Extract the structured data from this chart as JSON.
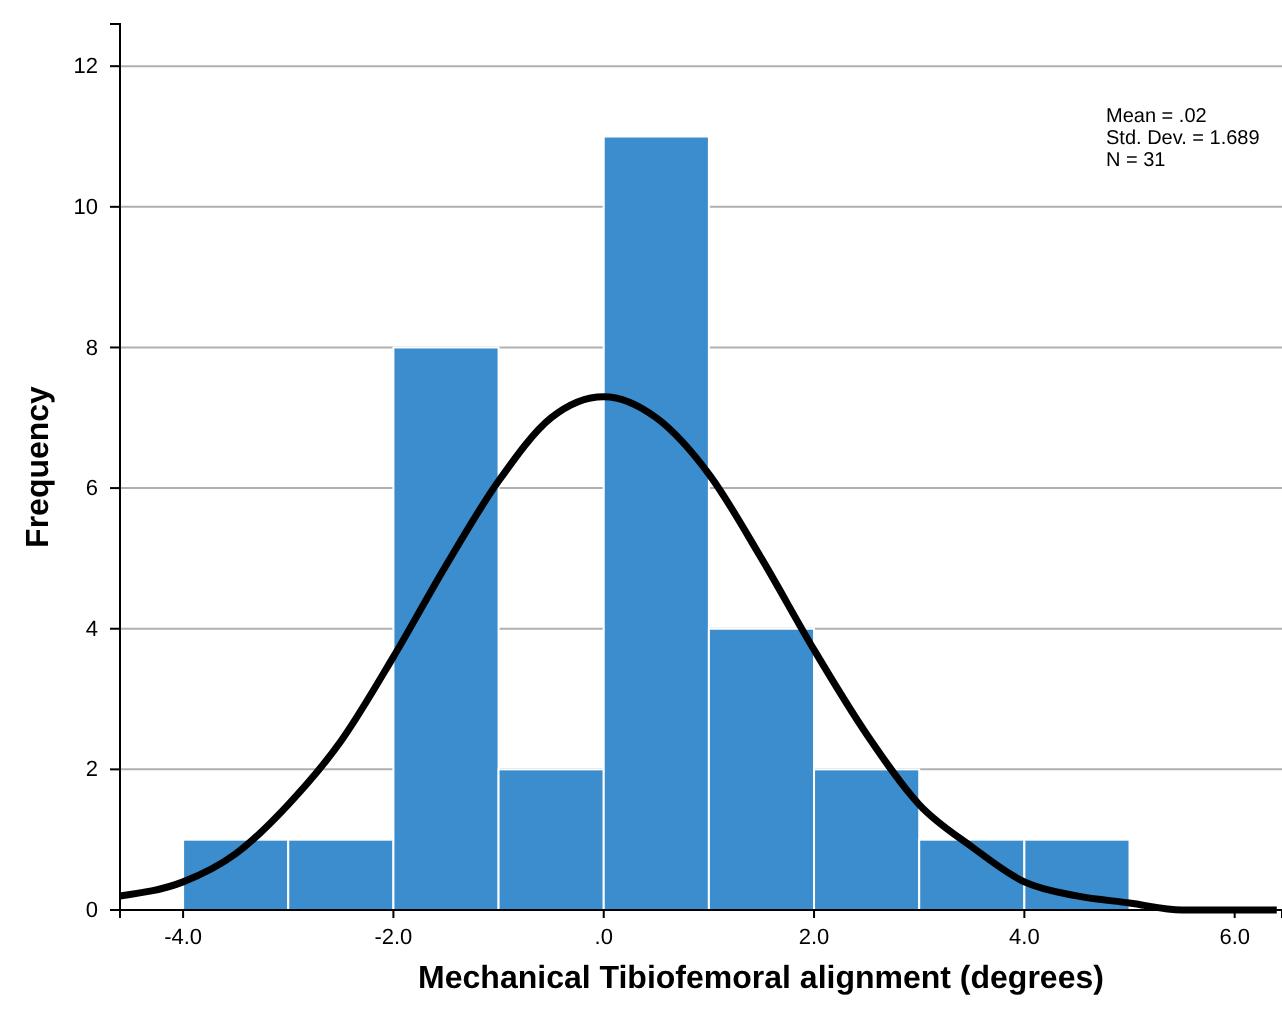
{
  "chart_data": {
    "type": "histogram",
    "xlabel": "Mechanical Tibiofemoral alignment (degrees)",
    "ylabel": "Frequency",
    "bins": [
      -4,
      -3,
      -2,
      -1,
      0,
      1,
      2,
      3,
      4,
      5
    ],
    "values": [
      1,
      1,
      8,
      2,
      11,
      4,
      2,
      1,
      1
    ],
    "color": "#3b8dcd",
    "series": [
      {
        "type": "line",
        "color": "#000000",
        "x": [
          -4.6,
          -4,
          -3.5,
          -3,
          -2.5,
          -2,
          -1.5,
          -1,
          -0.5,
          0,
          0.5,
          1,
          1.5,
          2,
          2.5,
          3,
          3.5,
          4,
          4.5,
          5,
          5.5,
          6,
          6.4
        ],
        "values": [
          0.2,
          0.4,
          0.8,
          1.5,
          2.4,
          3.6,
          4.9,
          6.1,
          7.0,
          7.3,
          7.0,
          6.2,
          5.0,
          3.7,
          2.5,
          1.5,
          0.9,
          0.4,
          0.2,
          0.1,
          0.0,
          0.0,
          0.0
        ]
      }
    ],
    "xlim": [
      -4.6,
      6.45
    ],
    "ylim": [
      0,
      12.6
    ],
    "xticks": [
      {
        "value": -4,
        "label": "-4.0"
      },
      {
        "value": -2,
        "label": "-2.0"
      },
      {
        "value": 0,
        "label": ".0"
      },
      {
        "value": 2,
        "label": "2.0"
      },
      {
        "value": 4,
        "label": "4.0"
      },
      {
        "value": 6,
        "label": "6.0"
      }
    ],
    "yticks": [
      0,
      2,
      4,
      6,
      8,
      10,
      12
    ],
    "grid": "y",
    "annotations": [
      "Mean = .02",
      "Std. Dev. = 1.689",
      "N = 31"
    ]
  }
}
